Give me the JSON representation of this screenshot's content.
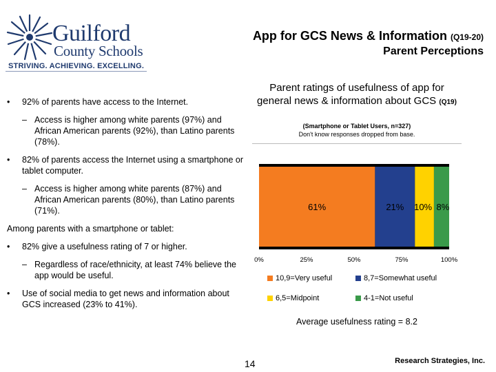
{
  "header": {
    "logo_line1": "Guilford",
    "logo_line2": "County Schools",
    "tagline": "STRIVING. ACHIEVING. EXCELLING.",
    "title": "App for GCS News & Information",
    "title_suffix": "(Q19-20)",
    "subtitle": "Parent Perceptions"
  },
  "bullets": {
    "b1": "92% of parents have access to the Internet.",
    "b1_sub": "Access is higher among white parents (97%) and African American parents (92%), than Latino parents (78%).",
    "b2": "82% of parents access the Internet using a smartphone or tablet computer.",
    "b2_sub": "Access is higher among white parents (87%) and African American parents (80%), than Latino parents (71%).",
    "among": "Among parents with a smartphone or tablet:",
    "b3": "82% give a usefulness rating of 7 or higher.",
    "b3_sub": "Regardless of race/ethnicity, at least 74% believe the app would be useful.",
    "b4": "Use of social media to get news and information about GCS increased (23% to 41%)."
  },
  "chart_data": {
    "type": "bar",
    "orientation": "horizontal-stacked",
    "title": "Parent ratings of usefulness of app for general news & information about GCS",
    "title_suffix": "(Q19)",
    "subtitle": "(Smartphone or Tablet Users, n=327)",
    "note": "Don't know responses dropped from base.",
    "categories": [
      ""
    ],
    "series": [
      {
        "name": "10,9=Very useful",
        "values": [
          61
        ],
        "label": "61%",
        "color": "#f47c20"
      },
      {
        "name": "8,7=Somewhat useful",
        "values": [
          21
        ],
        "label": "21%",
        "color": "#23408e"
      },
      {
        "name": "6,5=Midpoint",
        "values": [
          10
        ],
        "label": "10%",
        "color": "#ffd200"
      },
      {
        "name": "4-1=Not useful",
        "values": [
          8
        ],
        "label": "8%",
        "color": "#3a9a4a"
      }
    ],
    "xlim": [
      0,
      100
    ],
    "xticks": [
      "0%",
      "25%",
      "50%",
      "75%",
      "100%"
    ],
    "grid": false,
    "legend_position": "bottom"
  },
  "footer": {
    "average": "Average usefulness rating = 8.2",
    "page_number": "14",
    "credit": "Research Strategies, Inc."
  }
}
